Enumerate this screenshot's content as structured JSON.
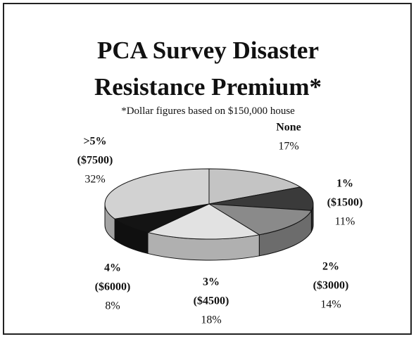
{
  "chart_data": {
    "type": "pie3d",
    "title": "PCA Survey Disaster Resistance Premium*",
    "subtitle": "*Dollar figures based on $150,000 house",
    "categories": [
      "None",
      "1%",
      "2%",
      "3%",
      "4%",
      ">5%"
    ],
    "dollar_labels": [
      null,
      "($1500)",
      "($3000)",
      "($4500)",
      "($6000)",
      "($7500)"
    ],
    "values": [
      17,
      11,
      14,
      18,
      8,
      32
    ],
    "value_labels": [
      "17%",
      "11%",
      "14%",
      "18%",
      "8%",
      "32%"
    ],
    "colors": [
      "#c4c4c4",
      "#3a3a3a",
      "#8a8a8a",
      "#e2e2e2",
      "#141414",
      "#d2d2d2"
    ],
    "start_angle": -90,
    "direction": "clockwise"
  }
}
